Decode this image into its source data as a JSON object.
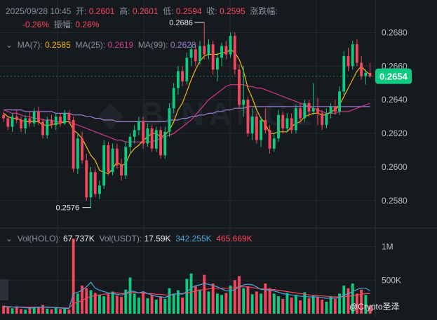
{
  "header": {
    "datetime": "2025/09/28 10:45",
    "open_label": "开:",
    "open_value": "0.2601",
    "high_label": "高:",
    "high_value": "0.2601",
    "low_label": "低:",
    "low_value": "0.2594",
    "close_label": "收:",
    "close_value": "0.2595",
    "change_label": "涨跌幅:",
    "change_value": "-0.26%",
    "amplitude_label": "振幅:",
    "amplitude_value": "0.26%"
  },
  "ma": {
    "ma7_label": "MA(7):",
    "ma7_value": "0.2585",
    "ma7_color": "#f0b90b",
    "ma25_label": "MA(25):",
    "ma25_value": "0.2619",
    "ma25_color": "#d03a8c",
    "ma99_label": "MA(99):",
    "ma99_value": "0.2628",
    "ma99_color": "#9b7fd4"
  },
  "volume": {
    "vol_coin_label": "Vol(HOLO):",
    "vol_coin_value": "67.737K",
    "vol_usdt_label": "Vol(USDT):",
    "vol_usdt_value": "17.59K",
    "vol_ma5_value": "342.255K",
    "vol_ma5_color": "#4aa3d8",
    "vol_ma10_value": "465.669K",
    "vol_ma10_color": "#f6465d"
  },
  "colors": {
    "up": "#0ecb81",
    "down": "#f6465d",
    "grid": "#242a31",
    "axis_text": "#b7bdc6"
  },
  "watermark": "@Crypto圣泽",
  "chart_data": {
    "type": "candlestick",
    "price_axis": {
      "ticks": [
        "0.2680",
        "0.2660",
        "0.2640",
        "0.2620",
        "0.2600",
        "0.2580"
      ],
      "ylim": [
        0.2565,
        0.2696
      ]
    },
    "volume_axis": {
      "ticks": [
        "1M",
        "500K"
      ],
      "ylim": [
        0,
        1100
      ]
    },
    "current_price": "0.2654",
    "annotations": {
      "high_label": "0.2686",
      "low_label": "0.2576"
    },
    "candles": [
      [
        0.2631,
        0.2633,
        0.2627,
        0.2629
      ],
      [
        0.2629,
        0.263,
        0.2622,
        0.2624
      ],
      [
        0.2624,
        0.2632,
        0.2621,
        0.263
      ],
      [
        0.263,
        0.2634,
        0.2626,
        0.2628
      ],
      [
        0.2628,
        0.263,
        0.2621,
        0.2623
      ],
      [
        0.2623,
        0.2631,
        0.262,
        0.2629
      ],
      [
        0.2629,
        0.2633,
        0.2624,
        0.2626
      ],
      [
        0.2626,
        0.2635,
        0.2624,
        0.2633
      ],
      [
        0.2633,
        0.2636,
        0.2625,
        0.2627
      ],
      [
        0.2627,
        0.2629,
        0.2617,
        0.2619
      ],
      [
        0.2619,
        0.263,
        0.2617,
        0.2628
      ],
      [
        0.2628,
        0.2631,
        0.2623,
        0.2625
      ],
      [
        0.2625,
        0.2632,
        0.2622,
        0.263
      ],
      [
        0.263,
        0.2632,
        0.2624,
        0.2626
      ],
      [
        0.2626,
        0.2634,
        0.2625,
        0.2632
      ],
      [
        0.2632,
        0.2634,
        0.2626,
        0.2628
      ],
      [
        0.2628,
        0.263,
        0.2597,
        0.2599
      ],
      [
        0.2599,
        0.262,
        0.2596,
        0.2617
      ],
      [
        0.2617,
        0.2621,
        0.2602,
        0.2604
      ],
      [
        0.2604,
        0.2608,
        0.258,
        0.2582
      ],
      [
        0.2582,
        0.26,
        0.2576,
        0.2597
      ],
      [
        0.2597,
        0.2599,
        0.2582,
        0.2584
      ],
      [
        0.2584,
        0.2592,
        0.2581,
        0.2589
      ],
      [
        0.2589,
        0.2616,
        0.2587,
        0.2613
      ],
      [
        0.2613,
        0.2615,
        0.2595,
        0.2597
      ],
      [
        0.2597,
        0.2614,
        0.2595,
        0.2611
      ],
      [
        0.2611,
        0.2614,
        0.2599,
        0.2601
      ],
      [
        0.2601,
        0.2605,
        0.2592,
        0.2595
      ],
      [
        0.2595,
        0.2615,
        0.2593,
        0.2612
      ],
      [
        0.2612,
        0.262,
        0.2608,
        0.2618
      ],
      [
        0.2618,
        0.2625,
        0.2614,
        0.2622
      ],
      [
        0.2622,
        0.263,
        0.2619,
        0.2627
      ],
      [
        0.2627,
        0.263,
        0.2611,
        0.2614
      ],
      [
        0.2614,
        0.2626,
        0.2612,
        0.2623
      ],
      [
        0.2623,
        0.2625,
        0.2609,
        0.2611
      ],
      [
        0.2611,
        0.2624,
        0.2609,
        0.2622
      ],
      [
        0.2622,
        0.2624,
        0.2605,
        0.2607
      ],
      [
        0.2607,
        0.2624,
        0.2605,
        0.2621
      ],
      [
        0.2621,
        0.2638,
        0.2618,
        0.2635
      ],
      [
        0.2635,
        0.265,
        0.2632,
        0.2647
      ],
      [
        0.2647,
        0.266,
        0.2643,
        0.2657
      ],
      [
        0.2657,
        0.266,
        0.2648,
        0.2651
      ],
      [
        0.2651,
        0.2668,
        0.2649,
        0.2665
      ],
      [
        0.2665,
        0.2673,
        0.266,
        0.267
      ],
      [
        0.267,
        0.2673,
        0.266,
        0.2663
      ],
      [
        0.2663,
        0.2675,
        0.2661,
        0.2672
      ],
      [
        0.2672,
        0.2686,
        0.2664,
        0.2667
      ],
      [
        0.2667,
        0.2676,
        0.2664,
        0.2673
      ],
      [
        0.2673,
        0.2675,
        0.2655,
        0.2658
      ],
      [
        0.2658,
        0.2668,
        0.2651,
        0.2665
      ],
      [
        0.2665,
        0.2674,
        0.266,
        0.2672
      ],
      [
        0.2672,
        0.2675,
        0.2664,
        0.2667
      ],
      [
        0.2667,
        0.268,
        0.2665,
        0.2678
      ],
      [
        0.2678,
        0.268,
        0.2655,
        0.2658
      ],
      [
        0.2658,
        0.2661,
        0.2635,
        0.2637
      ],
      [
        0.2637,
        0.266,
        0.263,
        0.264
      ],
      [
        0.264,
        0.2642,
        0.2618,
        0.262
      ],
      [
        0.262,
        0.2635,
        0.2616,
        0.263
      ],
      [
        0.263,
        0.2632,
        0.2614,
        0.2616
      ],
      [
        0.2616,
        0.263,
        0.2612,
        0.2628
      ],
      [
        0.2628,
        0.2635,
        0.262,
        0.2622
      ],
      [
        0.2622,
        0.2625,
        0.2608,
        0.2611
      ],
      [
        0.2611,
        0.262,
        0.2609,
        0.2617
      ],
      [
        0.2617,
        0.2634,
        0.2615,
        0.2631
      ],
      [
        0.2631,
        0.2633,
        0.262,
        0.2623
      ],
      [
        0.2623,
        0.2632,
        0.2621,
        0.2629
      ],
      [
        0.2629,
        0.2632,
        0.262,
        0.2622
      ],
      [
        0.2622,
        0.2637,
        0.262,
        0.2635
      ],
      [
        0.2635,
        0.2638,
        0.2626,
        0.2629
      ],
      [
        0.2629,
        0.264,
        0.2627,
        0.2638
      ],
      [
        0.2638,
        0.264,
        0.263,
        0.2633
      ],
      [
        0.2633,
        0.265,
        0.2631,
        0.2635
      ],
      [
        0.2635,
        0.2641,
        0.2625,
        0.2632
      ],
      [
        0.2632,
        0.2634,
        0.2622,
        0.2625
      ],
      [
        0.2625,
        0.2635,
        0.2623,
        0.2632
      ],
      [
        0.2632,
        0.2638,
        0.2629,
        0.2636
      ],
      [
        0.2636,
        0.264,
        0.2631,
        0.2633
      ],
      [
        0.2633,
        0.2648,
        0.2631,
        0.2645
      ],
      [
        0.2645,
        0.2669,
        0.2643,
        0.2666
      ],
      [
        0.2666,
        0.2671,
        0.2657,
        0.266
      ],
      [
        0.266,
        0.2675,
        0.2658,
        0.2673
      ],
      [
        0.2673,
        0.2676,
        0.266,
        0.2662
      ],
      [
        0.2662,
        0.2666,
        0.2652,
        0.2654
      ],
      [
        0.2654,
        0.2658,
        0.2649,
        0.2656
      ],
      [
        0.2656,
        0.2662,
        0.2653,
        0.2654
      ]
    ],
    "volumes": [
      120,
      95,
      80,
      110,
      70,
      60,
      85,
      90,
      100,
      130,
      75,
      65,
      90,
      70,
      80,
      60,
      1120,
      300,
      420,
      380,
      350,
      310,
      280,
      260,
      290,
      330,
      270,
      250,
      360,
      540,
      300,
      240,
      320,
      230,
      280,
      210,
      260,
      220,
      380,
      300,
      350,
      240,
      520,
      600,
      410,
      360,
      580,
      330,
      450,
      300,
      280,
      310,
      420,
      500,
      560,
      380,
      410,
      290,
      330,
      300,
      450,
      380,
      300,
      260,
      220,
      310,
      240,
      280,
      200,
      320,
      230,
      270,
      250,
      210,
      180,
      260,
      220,
      300,
      420,
      380,
      450,
      300,
      360,
      280,
      120
    ],
    "ma7": [
      0.2632,
      0.263,
      0.2629,
      0.2629,
      0.2628,
      0.2627,
      0.2627,
      0.2627,
      0.2627,
      0.2625,
      0.2625,
      0.2625,
      0.2626,
      0.2626,
      0.2627,
      0.2627,
      0.2622,
      0.262,
      0.2617,
      0.2612,
      0.2607,
      0.2604,
      0.2598,
      0.2597,
      0.2596,
      0.2599,
      0.2603,
      0.2601,
      0.2602,
      0.2608,
      0.2611,
      0.2613,
      0.2616,
      0.2618,
      0.262,
      0.262,
      0.2618,
      0.2619,
      0.2622,
      0.2627,
      0.2634,
      0.2638,
      0.2645,
      0.2652,
      0.2658,
      0.2663,
      0.2666,
      0.2667,
      0.2667,
      0.2667,
      0.2668,
      0.2668,
      0.267,
      0.2668,
      0.2664,
      0.2657,
      0.2647,
      0.2641,
      0.2634,
      0.2629,
      0.2626,
      0.262,
      0.262,
      0.2621,
      0.2621,
      0.2621,
      0.2624,
      0.2626,
      0.2627,
      0.263,
      0.2631,
      0.2632,
      0.2632,
      0.2631,
      0.2631,
      0.2633,
      0.2634,
      0.2637,
      0.2642,
      0.2647,
      0.2652,
      0.2657,
      0.266,
      0.2657,
      0.2655
    ],
    "ma25": [
      0.2634,
      0.2633,
      0.2632,
      0.2632,
      0.2631,
      0.263,
      0.263,
      0.2629,
      0.2629,
      0.2628,
      0.2628,
      0.2628,
      0.2627,
      0.2627,
      0.2627,
      0.2627,
      0.2626,
      0.2625,
      0.2624,
      0.2623,
      0.2622,
      0.2621,
      0.262,
      0.2619,
      0.2618,
      0.2617,
      0.2616,
      0.2616,
      0.2615,
      0.2615,
      0.2615,
      0.2615,
      0.2615,
      0.2615,
      0.2615,
      0.2616,
      0.2617,
      0.2618,
      0.2619,
      0.262,
      0.2622,
      0.2624,
      0.2626,
      0.2628,
      0.2631,
      0.2634,
      0.2637,
      0.264,
      0.2642,
      0.2644,
      0.2646,
      0.2648,
      0.2649,
      0.2649,
      0.2649,
      0.2649,
      0.2648,
      0.2648,
      0.2647,
      0.2647,
      0.2646,
      0.2645,
      0.2644,
      0.2643,
      0.2642,
      0.2641,
      0.264,
      0.2639,
      0.2638,
      0.2637,
      0.2636,
      0.2635,
      0.2634,
      0.2633,
      0.2632,
      0.2632,
      0.2632,
      0.2633,
      0.2633,
      0.2633,
      0.2634,
      0.2635,
      0.2636,
      0.2637,
      0.2638
    ],
    "ma99": [
      0.2634,
      0.2634,
      0.2634,
      0.2634,
      0.2634,
      0.2633,
      0.2633,
      0.2633,
      0.2633,
      0.2633,
      0.2633,
      0.2633,
      0.2632,
      0.2632,
      0.2632,
      0.2632,
      0.2631,
      0.2631,
      0.2631,
      0.263,
      0.263,
      0.2629,
      0.2629,
      0.2628,
      0.2628,
      0.2628,
      0.2627,
      0.2627,
      0.2627,
      0.2627,
      0.2627,
      0.2627,
      0.2627,
      0.2627,
      0.2627,
      0.2627,
      0.2627,
      0.2627,
      0.2628,
      0.2628,
      0.2628,
      0.2629,
      0.2629,
      0.263,
      0.263,
      0.2631,
      0.2631,
      0.2632,
      0.2632,
      0.2633,
      0.2633,
      0.2634,
      0.2634,
      0.2635,
      0.2635,
      0.2635,
      0.2636,
      0.2636,
      0.2636,
      0.2636,
      0.2636,
      0.2636,
      0.2636,
      0.2636,
      0.2636,
      0.2636,
      0.2636,
      0.2636,
      0.2636,
      0.2636,
      0.2636,
      0.2636,
      0.2636,
      0.2636,
      0.2636,
      0.2636,
      0.2636,
      0.2636,
      0.2636,
      0.2636,
      0.2636,
      0.2636,
      0.2636,
      0.2636,
      0.2636
    ],
    "vol_ma5": [
      110,
      105,
      100,
      98,
      95,
      90,
      85,
      90,
      95,
      100,
      100,
      95,
      90,
      85,
      80,
      78,
      300,
      320,
      350,
      400,
      470,
      380,
      350,
      330,
      310,
      300,
      290,
      280,
      300,
      340,
      330,
      310,
      330,
      300,
      280,
      260,
      250,
      240,
      270,
      290,
      300,
      290,
      330,
      380,
      420,
      430,
      450,
      440,
      420,
      400,
      370,
      340,
      340,
      360,
      400,
      430,
      440,
      430,
      400,
      360,
      360,
      350,
      340,
      320,
      300,
      290,
      280,
      270,
      260,
      260,
      250,
      250,
      250,
      240,
      230,
      230,
      230,
      240,
      270,
      300,
      330,
      360,
      380,
      380,
      340
    ],
    "vol_ma10": [
      100,
      100,
      100,
      100,
      100,
      95,
      95,
      95,
      95,
      95,
      95,
      92,
      90,
      88,
      86,
      85,
      150,
      170,
      200,
      230,
      260,
      270,
      280,
      290,
      300,
      310,
      310,
      300,
      300,
      310,
      320,
      310,
      310,
      300,
      300,
      290,
      290,
      280,
      280,
      290,
      300,
      300,
      310,
      320,
      340,
      350,
      360,
      370,
      380,
      380,
      380,
      380,
      380,
      390,
      400,
      400,
      400,
      390,
      380,
      370,
      370,
      360,
      360,
      350,
      340,
      330,
      320,
      310,
      300,
      290,
      280,
      275,
      270,
      265,
      260,
      255,
      250,
      250,
      255,
      260,
      270,
      280,
      290,
      300,
      300
    ]
  }
}
